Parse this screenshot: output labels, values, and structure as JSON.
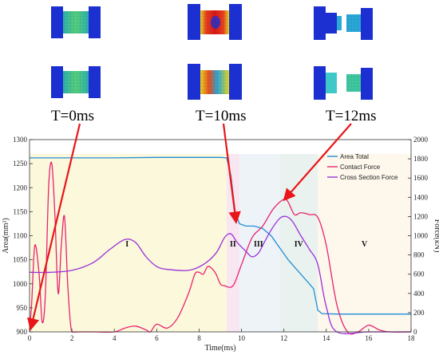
{
  "time_labels": [
    "T=0ms",
    "T=10ms",
    "T=12ms"
  ],
  "colors": {
    "area": "#1f8fd8",
    "contact": "#e8246e",
    "cross": "#9b30d8",
    "arrow": "#e8161a",
    "mesh_blue": "#1c2fd0",
    "mesh_green": "#3fc8a0",
    "mesh_red": "#e83020",
    "mesh_yellow": "#e8d820"
  },
  "chart_data": {
    "type": "line",
    "xlabel": "Time(ms)",
    "ylabel_left": "Area(mm²)",
    "ylabel_right": "Force(kN)",
    "xlim": [
      0,
      18
    ],
    "ylim_left": [
      900,
      1300
    ],
    "ylim_right": [
      0,
      2000
    ],
    "x_ticks": [
      "0",
      "2",
      "4",
      "6",
      "8",
      "10",
      "12",
      "14",
      "16",
      "18"
    ],
    "y_left_ticks": [
      "900",
      "950",
      "1000",
      "1050",
      "1100",
      "1150",
      "1200",
      "1250",
      "1300"
    ],
    "y_right_ticks": [
      "0",
      "200",
      "400",
      "600",
      "800",
      "1000",
      "1200",
      "1400",
      "1600",
      "1800",
      "2000"
    ],
    "grid": false,
    "legend_position": "top-right",
    "phases": [
      {
        "label": "I",
        "x0": 0,
        "x1": 9.3,
        "color": "#fbf8dc",
        "label_x": 4.6
      },
      {
        "label": "II",
        "x0": 9.3,
        "x1": 9.9,
        "color": "#f8e6f0",
        "label_x": 9.6
      },
      {
        "label": "III",
        "x0": 9.9,
        "x1": 11.8,
        "color": "#eef3f8",
        "label_x": 10.8
      },
      {
        "label": "IV",
        "x0": 11.8,
        "x1": 13.6,
        "color": "#e9f2ee",
        "label_x": 12.7
      },
      {
        "label": "V",
        "x0": 13.6,
        "x1": 18,
        "color": "#fdf7ec",
        "label_x": 15.8
      }
    ],
    "series": [
      {
        "name": "Area Total",
        "axis": "left",
        "color": "#1f8fd8",
        "x": [
          0,
          2,
          4,
          6,
          8,
          9.0,
          9.3,
          9.5,
          9.7,
          9.9,
          10.2,
          10.6,
          11.0,
          11.4,
          11.8,
          12.2,
          12.6,
          13.0,
          13.4,
          13.6,
          13.8,
          14.5,
          16,
          18
        ],
        "y": [
          1262,
          1262,
          1262,
          1263,
          1263,
          1263,
          1262,
          1225,
          1150,
          1125,
          1120,
          1120,
          1115,
          1100,
          1075,
          1050,
          1030,
          1010,
          990,
          945,
          938,
          937,
          937,
          937
        ]
      },
      {
        "name": "Contact Force",
        "axis": "right",
        "color": "#e8246e",
        "x": [
          0,
          0.1,
          0.25,
          0.45,
          0.6,
          0.75,
          0.9,
          1.05,
          1.2,
          1.35,
          1.5,
          1.65,
          1.8,
          1.95,
          2.1,
          2.3,
          3,
          4,
          4.5,
          5,
          5.5,
          5.7,
          6,
          6.5,
          7,
          7.5,
          7.8,
          8.0,
          8.2,
          8.4,
          8.6,
          8.8,
          9.0,
          9.2,
          9.6,
          10.0,
          10.5,
          11.0,
          11.5,
          12.0,
          12.2,
          12.5,
          12.8,
          13.2,
          13.6,
          14.0,
          14.5,
          15,
          15.5,
          16,
          16.5,
          17,
          18
        ],
        "y": [
          0,
          300,
          900,
          600,
          100,
          400,
          1500,
          1750,
          1200,
          400,
          900,
          1200,
          500,
          50,
          0,
          0,
          0,
          0,
          40,
          60,
          20,
          0,
          80,
          40,
          150,
          400,
          600,
          620,
          600,
          680,
          660,
          600,
          500,
          480,
          480,
          700,
          980,
          1100,
          1280,
          1380,
          1350,
          1220,
          1240,
          1220,
          1190,
          900,
          280,
          0,
          0,
          70,
          20,
          0,
          0
        ]
      },
      {
        "name": "Cross Section Force",
        "axis": "right",
        "color": "#9b30d8",
        "x": [
          0,
          1,
          2,
          3,
          3.8,
          4.5,
          5.0,
          5.5,
          6,
          6.5,
          7.5,
          8.2,
          8.8,
          9.2,
          9.5,
          9.8,
          10.2,
          10.5,
          10.8,
          11.0,
          11.4,
          11.8,
          12.1,
          12.4,
          12.8,
          13.2,
          13.6,
          14.0,
          14.5,
          16,
          18
        ],
        "y": [
          620,
          620,
          640,
          720,
          860,
          960,
          930,
          780,
          680,
          650,
          640,
          700,
          820,
          980,
          1020,
          930,
          840,
          780,
          820,
          900,
          1060,
          1180,
          1200,
          1150,
          1000,
          860,
          700,
          260,
          0,
          0,
          0
        ]
      }
    ],
    "arrows": [
      {
        "label": "T=0ms",
        "to": [
          0.05,
          905
        ],
        "axis": "left"
      },
      {
        "label": "T=10ms",
        "to": [
          9.75,
          1127
        ],
        "axis": "left"
      },
      {
        "label": "T=12ms",
        "to": [
          12.0,
          1370
        ],
        "axis": "right"
      }
    ]
  }
}
